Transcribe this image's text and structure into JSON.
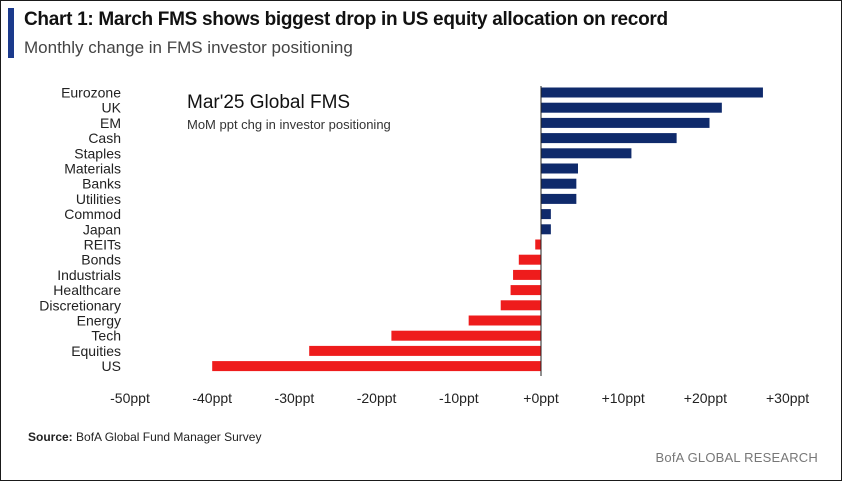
{
  "header": {
    "title": "Chart 1: March FMS shows biggest drop in US equity allocation on record",
    "subtitle": "Monthly change in FMS investor positioning"
  },
  "chart_data": {
    "type": "bar",
    "orientation": "horizontal",
    "inset_title": "Mar'25 Global FMS",
    "inset_subtitle": "MoM ppt chg in investor positioning",
    "categories": [
      "Eurozone",
      "UK",
      "EM",
      "Cash",
      "Staples",
      "Materials",
      "Banks",
      "Utilities",
      "Commod",
      "Japan",
      "REITs",
      "Bonds",
      "Industrials",
      "Healthcare",
      "Discretionary",
      "Energy",
      "Tech",
      "Equities",
      "US"
    ],
    "values": [
      27,
      22,
      20.5,
      16.5,
      11,
      4.5,
      4.3,
      4.3,
      1.2,
      1.2,
      -0.7,
      -2.7,
      -3.4,
      -3.7,
      -4.9,
      -8.8,
      -18.2,
      -28.2,
      -40
    ],
    "xlim": [
      -50,
      30
    ],
    "xticks": [
      -50,
      -40,
      -30,
      -20,
      -10,
      0,
      10,
      20,
      30
    ],
    "xtick_labels": [
      "-50ppt",
      "-40ppt",
      "-30ppt",
      "-20ppt",
      "-10ppt",
      "+0ppt",
      "+10ppt",
      "+20ppt",
      "+30ppt"
    ],
    "colors": {
      "positive": "#0f2a6b",
      "negative": "#ee1c1c"
    },
    "grid": false,
    "legend": "none"
  },
  "footer": {
    "source_label": "Source:",
    "source_text": "BofA Global Fund Manager Survey",
    "brand": "BofA GLOBAL RESEARCH"
  }
}
